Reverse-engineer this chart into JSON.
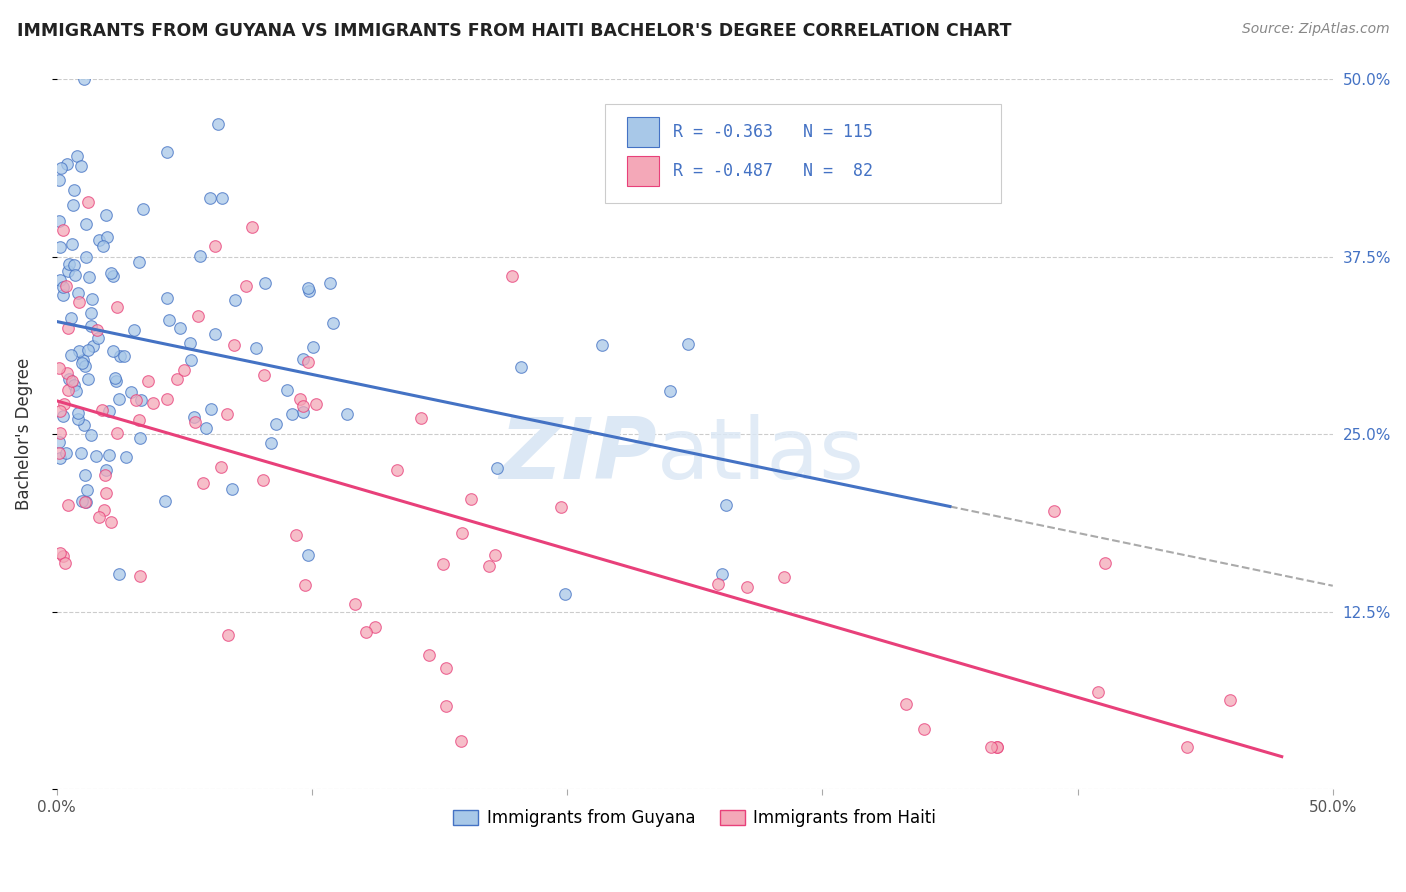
{
  "title": "IMMIGRANTS FROM GUYANA VS IMMIGRANTS FROM HAITI BACHELOR'S DEGREE CORRELATION CHART",
  "source": "Source: ZipAtlas.com",
  "ylabel": "Bachelor's Degree",
  "xlim": [
    0.0,
    0.5
  ],
  "ylim": [
    0.0,
    0.5
  ],
  "color_guyana": "#a8c8e8",
  "color_haiti": "#f4a8b8",
  "line_color_guyana": "#4472c4",
  "line_color_haiti": "#e8407a",
  "background_color": "#ffffff",
  "grid_color": "#cccccc",
  "right_tick_color": "#4472c4",
  "legend_r1": "R = -0.363",
  "legend_n1": "N = 115",
  "legend_r2": "R = -0.487",
  "legend_n2": "N =  82",
  "guyana_intercept": 0.332,
  "guyana_slope": -0.48,
  "haiti_intercept": 0.296,
  "haiti_slope": -0.62
}
